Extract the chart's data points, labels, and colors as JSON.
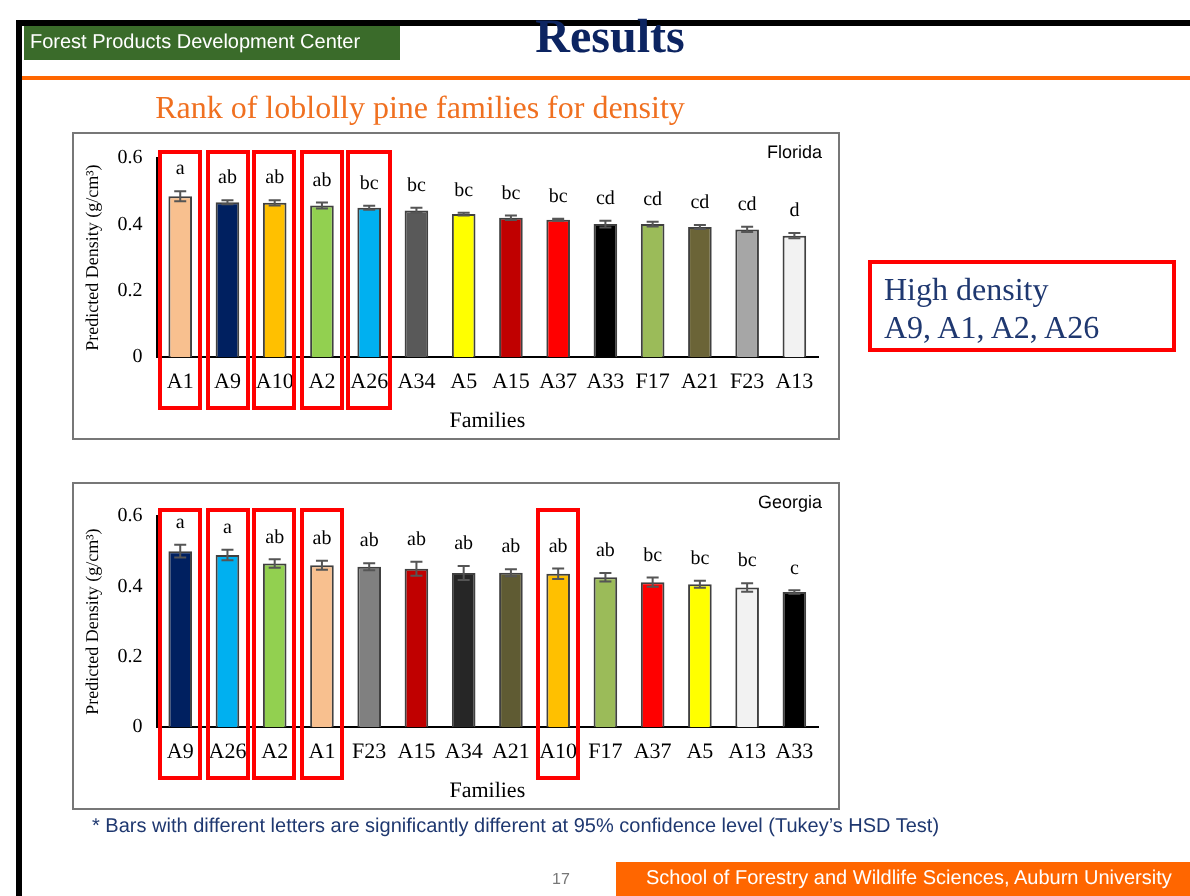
{
  "chart_data": [
    {
      "type": "bar",
      "title": "Rank of loblolly pine families for density",
      "subtitle": "Florida",
      "xlabel": "Families",
      "ylabel": "Predicted Density (g/cm³)",
      "annotations": [
        "Forest  Products Development Center",
        "Results",
        "High density\nA9, A1, A2, A26",
        "* Bars with different letters are significantly different at 95% confidence level (Tukey’s HSD Test)",
        "17",
        "School of Forestry and Wildlife Sciences, Auburn University"
      ],
      "categories": [
        "A1",
        "A9",
        "A10",
        "A2",
        "A26",
        "A34",
        "A5",
        "A15",
        "A37",
        "A33",
        "F17",
        "A21",
        "F23",
        "A13"
      ],
      "values": [
        0.485,
        0.467,
        0.465,
        0.457,
        0.45,
        0.442,
        0.431,
        0.42,
        0.414,
        0.401,
        0.401,
        0.392,
        0.385,
        0.366
      ],
      "errors": [
        0.015,
        0.006,
        0.008,
        0.009,
        0.006,
        0.008,
        0.004,
        0.007,
        0.003,
        0.01,
        0.007,
        0.006,
        0.008,
        0.008
      ],
      "value_labels": [
        "a",
        "ab",
        "ab",
        "ab",
        "bc",
        "bc",
        "bc",
        "bc",
        "bc",
        "cd",
        "cd",
        "cd",
        "cd",
        "d"
      ],
      "colors": [
        "#f8c08f",
        "#002060",
        "#ffc000",
        "#92d050",
        "#00b0f0",
        "#595959",
        "#ffff00",
        "#c00000",
        "#ff0000",
        "#000000",
        "#9bbb59",
        "#6b6437",
        "#a6a6a6",
        "#f2f2f2"
      ],
      "ylim": [
        0,
        0.6
      ],
      "yticks": [
        0,
        0.2,
        0.4,
        0.6
      ],
      "grid": false,
      "legend": false
    },
    {
      "type": "bar",
      "subtitle": "Georgia",
      "xlabel": "Families",
      "ylabel": "Predicted Density (g/cm³)",
      "categories": [
        "A9",
        "A26",
        "A2",
        "A1",
        "F23",
        "A15",
        "A34",
        "A21",
        "A10",
        "F17",
        "A37",
        "A5",
        "A13",
        "A33"
      ],
      "values": [
        0.5,
        0.489,
        0.465,
        0.46,
        0.456,
        0.45,
        0.438,
        0.439,
        0.436,
        0.426,
        0.412,
        0.406,
        0.397,
        0.384
      ],
      "errors": [
        0.018,
        0.015,
        0.012,
        0.013,
        0.01,
        0.02,
        0.02,
        0.01,
        0.015,
        0.012,
        0.013,
        0.01,
        0.012,
        0.005
      ],
      "value_labels": [
        "a",
        "a",
        "ab",
        "ab",
        "ab",
        "ab",
        "ab",
        "ab",
        "ab",
        "ab",
        "bc",
        "bc",
        "bc",
        "c"
      ],
      "colors": [
        "#002060",
        "#00b0f0",
        "#92d050",
        "#f8c08f",
        "#808080",
        "#c00000",
        "#262626",
        "#5f5b33",
        "#ffc000",
        "#9bbb59",
        "#ff0000",
        "#ffff00",
        "#f2f2f2",
        "#000000"
      ],
      "ylim": [
        0,
        0.6
      ],
      "yticks": [
        0,
        0.2,
        0.4,
        0.6
      ],
      "grid": false,
      "legend": false
    }
  ]
}
